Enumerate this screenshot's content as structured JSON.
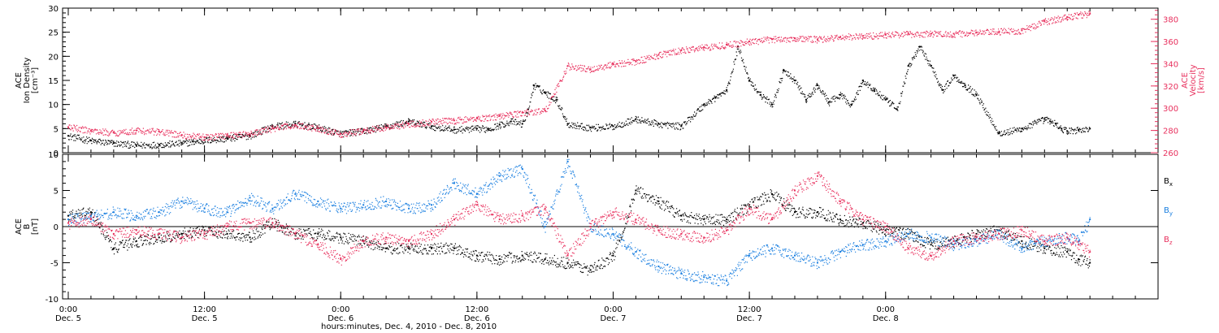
{
  "colors": {
    "black": "#000000",
    "pink": "#e8315e",
    "blue": "#1a7fe0",
    "axis": "#000000"
  },
  "chart_data": [
    {
      "type": "scatter",
      "panel": "top",
      "ylabel_lines": [
        "ACE",
        "Ion Density",
        "[cm⁻³]"
      ],
      "ylim": [
        0,
        30
      ],
      "yticks": [
        0,
        5,
        10,
        15,
        20,
        25,
        30
      ],
      "y2label_lines": [
        "ACE",
        "Velocity",
        "[km/s]"
      ],
      "y2lim": [
        260,
        390
      ],
      "y2ticks": [
        260,
        280,
        300,
        320,
        340,
        360,
        380
      ],
      "series": [
        {
          "color": "black",
          "axis": "left",
          "x": [
            0,
            2,
            4,
            6,
            8,
            10,
            11,
            12,
            14,
            16,
            18,
            20,
            22,
            24,
            26,
            28,
            30,
            32,
            34,
            36,
            37,
            38,
            39,
            40,
            40.5,
            41,
            42,
            43,
            44,
            46,
            48,
            50,
            52,
            54,
            56,
            57,
            58,
            59,
            60,
            61,
            62,
            63,
            64,
            65,
            66,
            67,
            68,
            69,
            70,
            71,
            72,
            73,
            74,
            75,
            76,
            77,
            78,
            79,
            80,
            82,
            84,
            86,
            86.5,
            87,
            87.5,
            88,
            89,
            90
          ],
          "y": [
            3.5,
            2.5,
            2.0,
            1.6,
            1.7,
            2.0,
            2.3,
            2.6,
            3.0,
            3.6,
            5.5,
            6.0,
            5.2,
            4.0,
            4.5,
            5.5,
            6.5,
            5.5,
            4.8,
            5.0,
            5.0,
            5.8,
            6.5,
            6.0,
            9.0,
            14.0,
            12.5,
            11.0,
            6.0,
            5.2,
            5.5,
            7.0,
            6.0,
            5.5,
            10.0,
            11.5,
            13.0,
            22.0,
            15.0,
            12.0,
            10.0,
            17.0,
            15.0,
            11.0,
            14.0,
            10.5,
            12.0,
            10.0,
            15.0,
            13.0,
            11.0,
            9.0,
            18.0,
            22.0,
            18.0,
            13.0,
            16.0,
            14.0,
            12.0,
            4.0,
            5.0,
            7.0,
            6.5,
            6.0,
            5.0,
            4.5,
            4.8,
            5.0
          ]
        },
        {
          "color": "pink",
          "axis": "right",
          "x": [
            0,
            2,
            4,
            6,
            8,
            10,
            12,
            14,
            16,
            18,
            20,
            22,
            24,
            26,
            28,
            30,
            32,
            34,
            36,
            38,
            40,
            42,
            44,
            46,
            48,
            50,
            52,
            54,
            56,
            58,
            60,
            62,
            64,
            66,
            68,
            70,
            72,
            74,
            76,
            78,
            80,
            82,
            84,
            86,
            88,
            89,
            90
          ],
          "y": [
            283,
            280,
            278,
            280,
            279,
            276,
            274,
            276,
            277,
            282,
            285,
            282,
            277,
            280,
            283,
            286,
            288,
            289,
            291,
            293,
            296,
            298,
            338,
            335,
            340,
            342,
            348,
            352,
            355,
            357,
            360,
            362,
            363,
            362,
            364,
            365,
            366,
            367,
            367,
            367,
            368,
            369,
            370,
            378,
            382,
            384,
            385
          ]
        }
      ]
    },
    {
      "type": "scatter",
      "panel": "bottom",
      "ylabel_lines": [
        "ACE",
        "B",
        "[nT]"
      ],
      "ylim": [
        -10,
        10
      ],
      "yticks": [
        -10,
        -5,
        0,
        5,
        10
      ],
      "legend": [
        "Bx",
        "By",
        "Bz"
      ],
      "series": [
        {
          "name": "Bx",
          "color": "black",
          "x": [
            0,
            2,
            4,
            6,
            8,
            10,
            12,
            14,
            16,
            18,
            20,
            22,
            24,
            26,
            28,
            30,
            32,
            34,
            36,
            38,
            40,
            42,
            44,
            46,
            48,
            50,
            52,
            54,
            56,
            58,
            60,
            62,
            64,
            66,
            68,
            70,
            72,
            74,
            76,
            78,
            80,
            82,
            84,
            86,
            88,
            89,
            90
          ],
          "y": [
            1.5,
            2.0,
            -3.0,
            -2.0,
            -1.5,
            -1.0,
            -0.5,
            -1.0,
            -1.5,
            0.5,
            -1.0,
            -1.0,
            -1.5,
            -2.0,
            -3.0,
            -3.0,
            -3.0,
            -3.0,
            -4.0,
            -4.5,
            -4.0,
            -4.5,
            -5.0,
            -6.0,
            -4.0,
            5.0,
            3.5,
            1.5,
            1.0,
            1.0,
            3.0,
            4.5,
            2.0,
            2.0,
            1.0,
            0.5,
            -0.5,
            -1.0,
            -2.5,
            -2.0,
            -1.0,
            -0.5,
            -2.0,
            -3.0,
            -3.5,
            -4.5,
            -5.0
          ]
        },
        {
          "name": "By",
          "color": "blue",
          "x": [
            0,
            2,
            4,
            6,
            8,
            10,
            12,
            14,
            16,
            18,
            20,
            22,
            24,
            26,
            28,
            30,
            32,
            34,
            36,
            38,
            40,
            42,
            44,
            46,
            48,
            50,
            52,
            54,
            56,
            58,
            60,
            62,
            64,
            66,
            68,
            70,
            72,
            74,
            76,
            78,
            80,
            82,
            84,
            86,
            88,
            89,
            90
          ],
          "y": [
            1.0,
            1.5,
            2.0,
            1.5,
            2.0,
            3.5,
            2.5,
            2.0,
            4.0,
            2.5,
            4.5,
            3.5,
            2.5,
            3.0,
            3.5,
            2.5,
            3.0,
            6.0,
            4.5,
            7.0,
            8.0,
            0.0,
            9.0,
            0.0,
            -1.0,
            -3.5,
            -5.5,
            -6.5,
            -7.0,
            -7.5,
            -4.0,
            -3.0,
            -4.0,
            -5.0,
            -3.5,
            -2.5,
            -2.0,
            -1.0,
            -1.5,
            -2.5,
            -2.0,
            -1.0,
            -3.0,
            -2.0,
            -1.5,
            -2.0,
            1.0
          ]
        },
        {
          "name": "Bz",
          "color": "pink",
          "x": [
            0,
            2,
            4,
            6,
            8,
            10,
            12,
            14,
            16,
            18,
            20,
            22,
            24,
            26,
            28,
            30,
            32,
            34,
            36,
            38,
            40,
            42,
            44,
            46,
            48,
            50,
            52,
            54,
            56,
            58,
            60,
            62,
            64,
            66,
            68,
            70,
            72,
            74,
            76,
            78,
            80,
            82,
            84,
            86,
            88,
            89,
            90
          ],
          "y": [
            0.5,
            1.0,
            -1.0,
            -0.5,
            -1.0,
            -1.5,
            -1.0,
            0.0,
            0.5,
            0.5,
            -1.0,
            -2.5,
            -4.5,
            -2.0,
            -1.5,
            -2.0,
            -1.0,
            1.0,
            3.0,
            1.0,
            1.5,
            2.5,
            -4.0,
            0.0,
            2.0,
            1.0,
            -0.5,
            -1.0,
            -1.5,
            -0.5,
            2.5,
            1.0,
            5.0,
            7.0,
            3.5,
            1.0,
            0.0,
            -3.0,
            -4.0,
            -2.0,
            -1.5,
            -1.0,
            -0.5,
            -2.0,
            -1.5,
            -2.5,
            -3.5
          ]
        }
      ]
    }
  ],
  "xaxis": {
    "xlim": [
      -0.5,
      96
    ],
    "ticks": [
      {
        "t": 0,
        "time": "0:00",
        "date": "Dec. 5"
      },
      {
        "t": 12,
        "time": "12:00",
        "date": "Dec. 5"
      },
      {
        "t": 24,
        "time": "0:00",
        "date": "Dec. 6"
      },
      {
        "t": 36,
        "time": "12:00",
        "date": "Dec. 6"
      },
      {
        "t": 48,
        "time": "0:00",
        "date": "Dec. 7"
      },
      {
        "t": 60,
        "time": "12:00",
        "date": "Dec. 7"
      },
      {
        "t": 72,
        "time": "0:00",
        "date": "Dec. 8"
      }
    ],
    "minor_step": 2,
    "title": "hours:minutes, Dec. 4, 2010 - Dec. 8, 2010"
  }
}
